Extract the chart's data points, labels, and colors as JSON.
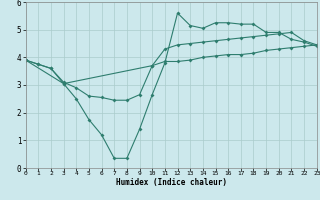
{
  "xlabel": "Humidex (Indice chaleur)",
  "ylabel": "",
  "bg_color": "#cce8ec",
  "line_color": "#2e7d6e",
  "grid_color": "#aacccc",
  "xlim": [
    0,
    23
  ],
  "ylim": [
    0,
    6
  ],
  "xticks": [
    0,
    1,
    2,
    3,
    4,
    5,
    6,
    7,
    8,
    9,
    10,
    11,
    12,
    13,
    14,
    15,
    16,
    17,
    18,
    19,
    20,
    21,
    22,
    23
  ],
  "yticks": [
    0,
    1,
    2,
    3,
    4,
    5,
    6
  ],
  "line1_x": [
    0,
    1,
    2,
    3,
    4,
    5,
    6,
    7,
    8,
    9,
    10,
    11,
    12,
    13,
    14,
    15,
    16,
    17,
    18,
    19,
    20,
    21,
    22,
    23
  ],
  "line1_y": [
    3.9,
    3.75,
    3.6,
    3.1,
    2.9,
    2.6,
    2.55,
    2.45,
    2.45,
    2.65,
    3.7,
    3.85,
    3.85,
    3.9,
    4.0,
    4.05,
    4.1,
    4.1,
    4.15,
    4.25,
    4.3,
    4.35,
    4.4,
    4.45
  ],
  "line2_x": [
    0,
    1,
    2,
    3,
    4,
    5,
    6,
    7,
    8,
    9,
    10,
    11,
    12,
    13,
    14,
    15,
    16,
    17,
    18,
    19,
    20,
    21,
    22,
    23
  ],
  "line2_y": [
    3.9,
    3.75,
    3.6,
    3.05,
    2.5,
    1.75,
    1.2,
    0.35,
    0.35,
    1.4,
    2.65,
    3.8,
    5.6,
    5.15,
    5.05,
    5.25,
    5.25,
    5.2,
    5.2,
    4.9,
    4.9,
    4.65,
    4.55,
    4.4
  ],
  "line3_x": [
    0,
    3,
    10,
    11,
    12,
    13,
    14,
    15,
    16,
    17,
    18,
    19,
    20,
    21,
    22,
    23
  ],
  "line3_y": [
    3.9,
    3.05,
    3.7,
    4.3,
    4.45,
    4.5,
    4.55,
    4.6,
    4.65,
    4.7,
    4.75,
    4.8,
    4.85,
    4.9,
    4.6,
    4.45
  ]
}
